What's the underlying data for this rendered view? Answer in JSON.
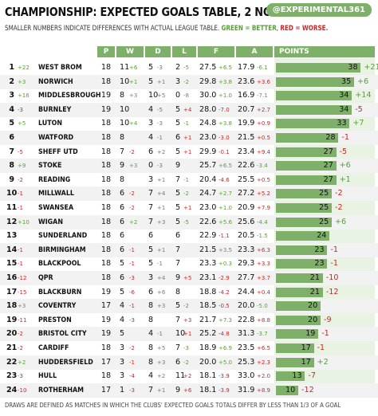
{
  "title": "CHAMPIONSHIP: EXPECTED GOALS TABLE, 2 NOV 2022",
  "handle": "@EXPERIMENTAL361",
  "subtitle": {
    "main": "SMALLER NUMBERS INDICATE DIFFERENCES WITH ACTUAL LEAGUE TABLE.",
    "green": "GREEN = BETTER",
    "red": "RED = WORSE."
  },
  "columns": [
    "P",
    "W",
    "D",
    "L",
    "F",
    "A",
    "POINTS"
  ],
  "footer": "DRAWS ARE DEFINED AS MATCHES IN WHICH THE CLUBS' EXPECTED GOALS TOTALS DIFFER BY LESS THAN 1/3 OF A GOAL",
  "colors": {
    "accent": "#7fb069",
    "better": "#5a9e3c",
    "worse": "#c62828"
  },
  "teams": [
    {
      "pos": "1",
      "chg": "+22",
      "team": "WEST BROM",
      "p": "18",
      "w": "11",
      "wd": "+6",
      "d": "5",
      "dd": "-3",
      "l": "2",
      "ld": "-5",
      "f": "27.5",
      "fd": "+6.5",
      "a": "17.9",
      "ad": "-6.1",
      "pts": 38,
      "ptsd": "+21"
    },
    {
      "pos": "2",
      "chg": "+3",
      "team": "NORWICH",
      "p": "18",
      "w": "10",
      "wd": "+1",
      "d": "5",
      "dd": "+1",
      "l": "3",
      "ld": "-2",
      "f": "29.8",
      "fd": "+3.8",
      "a": "23.6",
      "ad": "+3.6",
      "pts": 35,
      "ptsd": "+6"
    },
    {
      "pos": "3",
      "chg": "+16",
      "team": "MIDDLESBROUGH",
      "p": "19",
      "w": "8",
      "wd": "+3",
      "d": "10",
      "dd": "+5",
      "l": "0",
      "ld": "-8",
      "f": "30.0",
      "fd": "+1.0",
      "a": "16.9",
      "ad": "-7.1",
      "pts": 34,
      "ptsd": "+14"
    },
    {
      "pos": "4",
      "chg": "-3",
      "team": "BURNLEY",
      "p": "19",
      "w": "10",
      "wd": "",
      "d": "4",
      "dd": "-5",
      "l": "5",
      "ld": "+4",
      "f": "28.0",
      "fd": "-7.0",
      "a": "20.7",
      "ad": "+2.7",
      "pts": 34,
      "ptsd": "-5"
    },
    {
      "pos": "5",
      "chg": "+5",
      "team": "LUTON",
      "p": "18",
      "w": "10",
      "wd": "+4",
      "d": "3",
      "dd": "-3",
      "l": "5",
      "ld": "-1",
      "f": "24.8",
      "fd": "+3.8",
      "a": "19.9",
      "ad": "+0.9",
      "pts": 33,
      "ptsd": "+7"
    },
    {
      "pos": "6",
      "chg": "",
      "team": "WATFORD",
      "p": "18",
      "w": "8",
      "wd": "",
      "d": "4",
      "dd": "-1",
      "l": "6",
      "ld": "+1",
      "f": "23.0",
      "fd": "-3.0",
      "a": "21.5",
      "ad": "+0.5",
      "pts": 28,
      "ptsd": "-1"
    },
    {
      "pos": "7",
      "chg": "-5",
      "team": "SHEFF UTD",
      "p": "18",
      "w": "7",
      "wd": "-2",
      "d": "6",
      "dd": "+2",
      "l": "5",
      "ld": "+1",
      "f": "29.9",
      "fd": "-0.1",
      "a": "23.4",
      "ad": "+9.4",
      "pts": 27,
      "ptsd": "-5"
    },
    {
      "pos": "8",
      "chg": "+9",
      "team": "STOKE",
      "p": "18",
      "w": "9",
      "wd": "+3",
      "d": "0",
      "dd": "-3",
      "l": "9",
      "ld": "",
      "f": "25.7",
      "fd": "+6.5",
      "a": "22.6",
      "ad": "-3.4",
      "pts": 27,
      "ptsd": "+6"
    },
    {
      "pos": "9",
      "chg": "-2",
      "team": "READING",
      "p": "18",
      "w": "8",
      "wd": "",
      "d": "3",
      "dd": "+1",
      "l": "7",
      "ld": "-1",
      "f": "20.4",
      "fd": "-4.6",
      "a": "25.5",
      "ad": "+0.5",
      "pts": 27,
      "ptsd": "+1"
    },
    {
      "pos": "10",
      "chg": "-1",
      "team": "MILLWALL",
      "p": "18",
      "w": "6",
      "wd": "-2",
      "d": "7",
      "dd": "+4",
      "l": "5",
      "ld": "-2",
      "f": "24.7",
      "fd": "+2.7",
      "a": "27.2",
      "ad": "+5.2",
      "pts": 25,
      "ptsd": "-2"
    },
    {
      "pos": "11",
      "chg": "-1",
      "team": "SWANSEA",
      "p": "18",
      "w": "6",
      "wd": "-2",
      "d": "7",
      "dd": "+1",
      "l": "5",
      "ld": "+1",
      "f": "23.0",
      "fd": "+1.0",
      "a": "20.9",
      "ad": "+7.9",
      "pts": 25,
      "ptsd": "-2"
    },
    {
      "pos": "12",
      "chg": "+10",
      "team": "WIGAN",
      "p": "18",
      "w": "6",
      "wd": "+2",
      "d": "7",
      "dd": "+3",
      "l": "5",
      "ld": "-5",
      "f": "22.6",
      "fd": "+5.6",
      "a": "25.6",
      "ad": "-4.4",
      "pts": 25,
      "ptsd": "+6"
    },
    {
      "pos": "13",
      "chg": "",
      "team": "SUNDERLAND",
      "p": "18",
      "w": "6",
      "wd": "",
      "d": "6",
      "dd": "",
      "l": "6",
      "ld": "",
      "f": "22.9",
      "fd": "-1.1",
      "a": "20.5",
      "ad": "-1.5",
      "pts": 24,
      "ptsd": ""
    },
    {
      "pos": "14",
      "chg": "-1",
      "team": "BIRMINGHAM",
      "p": "18",
      "w": "6",
      "wd": "-1",
      "d": "5",
      "dd": "+1",
      "l": "7",
      "ld": "",
      "f": "21.5",
      "fd": "+3.5",
      "a": "23.3",
      "ad": "+6.3",
      "pts": 23,
      "ptsd": "-1"
    },
    {
      "pos": "15",
      "chg": "-1",
      "team": "BLACKPOOL",
      "p": "18",
      "w": "5",
      "wd": "-1",
      "d": "5",
      "dd": "-1",
      "l": "7",
      "ld": "",
      "f": "23.3",
      "fd": "+0.3",
      "a": "29.3",
      "ad": "+3.3",
      "pts": 23,
      "ptsd": "-1"
    },
    {
      "pos": "16",
      "chg": "-12",
      "team": "QPR",
      "p": "18",
      "w": "6",
      "wd": "-3",
      "d": "3",
      "dd": "+4",
      "l": "9",
      "ld": "+5",
      "f": "23.1",
      "fd": "-2.9",
      "a": "27.7",
      "ad": "+3.7",
      "pts": 21,
      "ptsd": "-10"
    },
    {
      "pos": "17",
      "chg": "-15",
      "team": "BLACKBURN",
      "p": "19",
      "w": "5",
      "wd": "-6",
      "d": "6",
      "dd": "+6",
      "l": "8",
      "ld": "",
      "f": "18.8",
      "fd": "-4.2",
      "a": "24.4",
      "ad": "+0.4",
      "pts": 21,
      "ptsd": "-12"
    },
    {
      "pos": "18",
      "chg": "+3",
      "team": "COVENTRY",
      "p": "17",
      "w": "4",
      "wd": "-1",
      "d": "8",
      "dd": "+3",
      "l": "5",
      "ld": "-2",
      "f": "18.5",
      "fd": "-0.5",
      "a": "20.0",
      "ad": "-5.0",
      "pts": 20,
      "ptsd": ""
    },
    {
      "pos": "19",
      "chg": "-11",
      "team": "PRESTON",
      "p": "19",
      "w": "4",
      "wd": "-3",
      "d": "8",
      "dd": "",
      "l": "7",
      "ld": "+3",
      "f": "21.7",
      "fd": "+7.3",
      "a": "22.8",
      "ad": "+8.8",
      "pts": 20,
      "ptsd": "-9"
    },
    {
      "pos": "20",
      "chg": "-2",
      "team": "BRISTOL CITY",
      "p": "19",
      "w": "5",
      "wd": "",
      "d": "4",
      "dd": "-1",
      "l": "10",
      "ld": "+1",
      "f": "25.2",
      "fd": "-4.8",
      "a": "31.3",
      "ad": "-3.7",
      "pts": 19,
      "ptsd": "-1"
    },
    {
      "pos": "21",
      "chg": "-2",
      "team": "CARDIFF",
      "p": "18",
      "w": "3",
      "wd": "-2",
      "d": "8",
      "dd": "+5",
      "l": "7",
      "ld": "-3",
      "f": "18.9",
      "fd": "+6.9",
      "a": "23.5",
      "ad": "+6.5",
      "pts": 17,
      "ptsd": "-1"
    },
    {
      "pos": "22",
      "chg": "+2",
      "team": "HUDDERSFIELD",
      "p": "17",
      "w": "3",
      "wd": "-1",
      "d": "8",
      "dd": "+3",
      "l": "6",
      "ld": "-2",
      "f": "20.0",
      "fd": "+5.0",
      "a": "25.3",
      "ad": "+2.3",
      "pts": 17,
      "ptsd": "+2"
    },
    {
      "pos": "23",
      "chg": "-3",
      "team": "HULL",
      "p": "18",
      "w": "3",
      "wd": "-4",
      "d": "4",
      "dd": "+2",
      "l": "11",
      "ld": "+2",
      "f": "18.1",
      "fd": "-3.9",
      "a": "33.0",
      "ad": "+2.0",
      "pts": 13,
      "ptsd": "-7"
    },
    {
      "pos": "24",
      "chg": "-10",
      "team": "ROTHERHAM",
      "p": "17",
      "w": "1",
      "wd": "-3",
      "d": "7",
      "dd": "+1",
      "l": "9",
      "ld": "+6",
      "f": "18.1",
      "fd": "-3.9",
      "a": "31.9",
      "ad": "+8.9",
      "pts": 10,
      "ptsd": "-12"
    }
  ]
}
